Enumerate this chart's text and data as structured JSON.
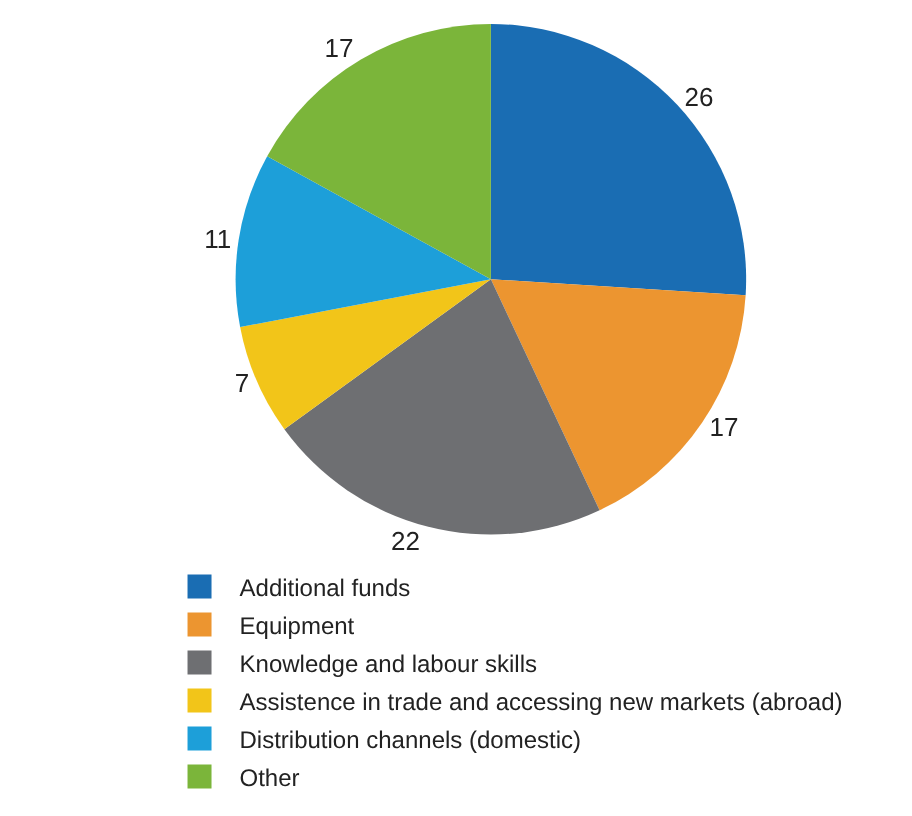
{
  "chart_data": {
    "type": "pie",
    "categories": [
      "Additional funds",
      "Equipment",
      "Knowledge and labour skills",
      "Assistence in trade and accessing new markets (abroad)",
      "Distribution channels (domestic)",
      "Other"
    ],
    "values": [
      26,
      17,
      22,
      7,
      11,
      17
    ],
    "colors": [
      "#1a6db3",
      "#ec9530",
      "#6e6f72",
      "#f2c519",
      "#1d9fd9",
      "#7bb53a"
    ],
    "data_labels": true,
    "legend": "bottom"
  }
}
